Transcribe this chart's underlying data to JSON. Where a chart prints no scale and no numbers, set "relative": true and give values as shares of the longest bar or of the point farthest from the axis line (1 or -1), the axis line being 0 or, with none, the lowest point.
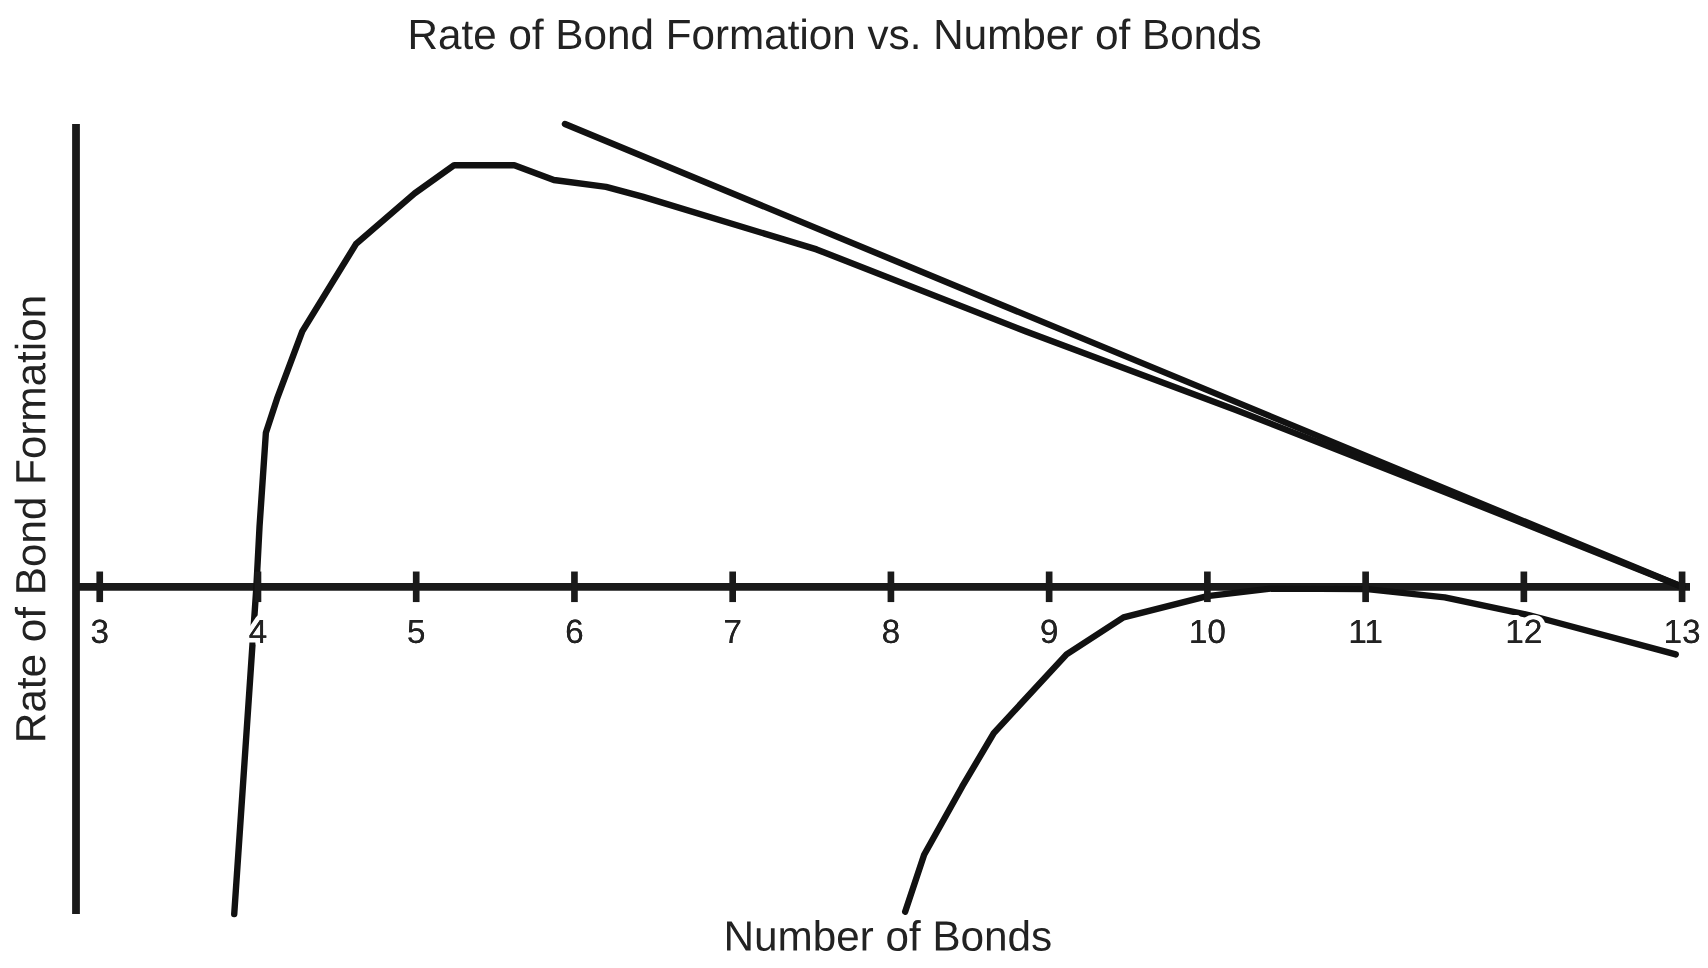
{
  "chart_data": {
    "type": "line",
    "title": "Rate of Bond Formation vs. Number of Bonds",
    "xlabel": "Number of Bonds",
    "ylabel": "Rate of Bond Formation",
    "relative": true,
    "xlim": [
      2.85,
      13.05
    ],
    "xticks": [
      3,
      4,
      5,
      6,
      7,
      8,
      9,
      10,
      11,
      12,
      13
    ],
    "marker": "none",
    "line_style": "solid",
    "series": [
      {
        "color": "#111111",
        "x": [
          5.94,
          13.0
        ],
        "values": [
          1.0,
          0.0
        ]
      },
      {
        "color": "#111111",
        "x": [
          3.85,
          3.99,
          4.01,
          4.05,
          4.12,
          4.28,
          4.62,
          4.99,
          5.24,
          5.62,
          5.87,
          6.2,
          6.43,
          7.53,
          8.85,
          10.18,
          11.5,
          13.0
        ],
        "values": [
          -0.707,
          0.0,
          0.131,
          0.333,
          0.406,
          0.552,
          0.741,
          0.85,
          0.911,
          0.911,
          0.879,
          0.864,
          0.843,
          0.729,
          0.552,
          0.382,
          0.205,
          0.0
        ]
      },
      {
        "color": "#111111",
        "x": [
          8.09,
          8.21,
          8.45,
          8.65,
          9.11,
          9.47,
          10.0,
          10.4,
          11.01,
          11.5,
          12.03,
          12.96
        ],
        "values": [
          -0.702,
          -0.579,
          -0.432,
          -0.316,
          -0.146,
          -0.066,
          -0.02,
          -0.004,
          -0.005,
          -0.023,
          -0.061,
          -0.146
        ]
      }
    ]
  }
}
